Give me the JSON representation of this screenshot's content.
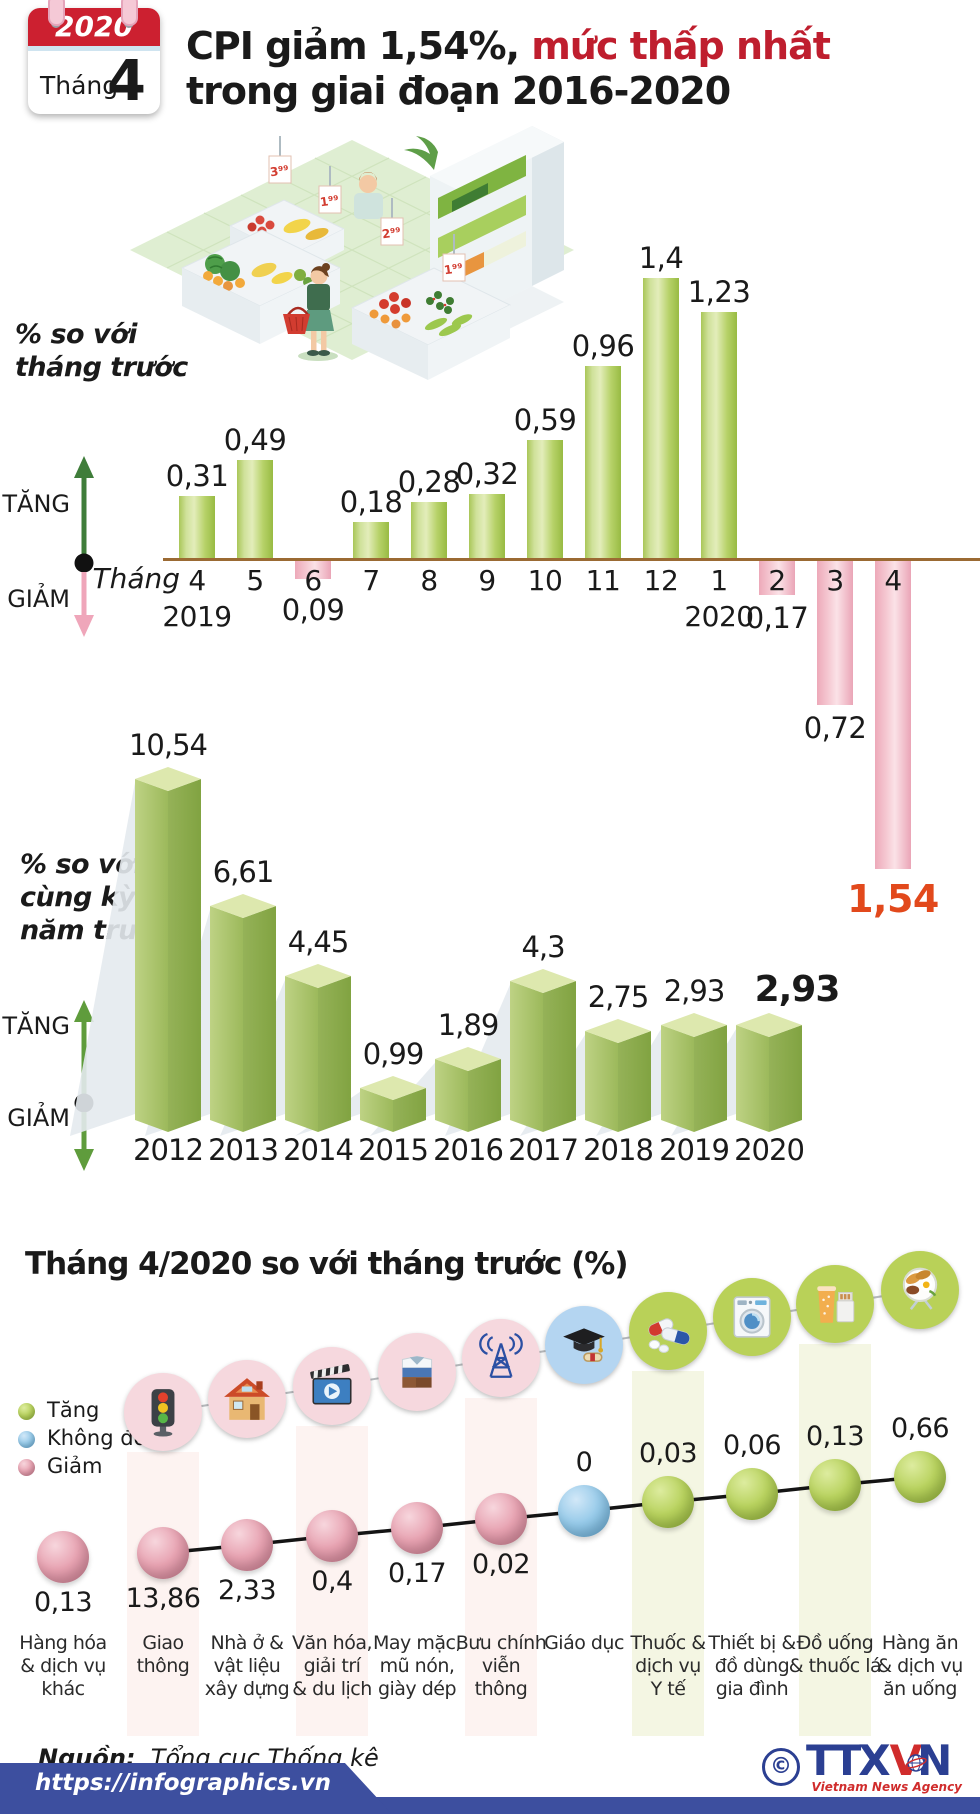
{
  "header": {
    "calendar": {
      "year": "2020",
      "month_label": "Tháng",
      "month_number": "4"
    },
    "title_part1": "CPI giảm 1,54%, ",
    "title_highlight": "mức thấp nhất",
    "title_line2": "trong giai đoạn 2016-2020"
  },
  "illustration": {
    "price_tags": [
      "3⁹⁹",
      "1⁹⁹",
      "2⁹⁹",
      "1⁹⁹"
    ]
  },
  "colors": {
    "up_green": "#3f7d3a",
    "down_pink": "#efa6ba",
    "bar_green": "#b7d269",
    "bar_pink": "#f2bcc8",
    "bar3d_green": "#a3bd62",
    "highlight_orange": "#e2491c",
    "axis_brown": "#9b6a33",
    "footer_blue": "#3d4f9f",
    "logo_red": "#d02c2c",
    "title_red": "#bf1e2e"
  },
  "chart_data": [
    {
      "id": "cpi-month-over-month",
      "type": "bar",
      "title": "% so với tháng trước",
      "title_lines": [
        "% so với",
        "tháng trước"
      ],
      "legend_up": "TĂNG",
      "legend_down": "GIẢM",
      "axis_label": "Tháng",
      "categories": [
        "4",
        "5",
        "6",
        "7",
        "8",
        "9",
        "10",
        "11",
        "12",
        "1",
        "2",
        "3",
        "4"
      ],
      "year_marks": [
        {
          "index": 0,
          "label": "2019"
        },
        {
          "index": 9,
          "label": "2020"
        }
      ],
      "values": [
        0.31,
        0.49,
        -0.09,
        0.18,
        0.28,
        0.32,
        0.59,
        0.96,
        1.4,
        1.23,
        -0.17,
        -0.72,
        -1.54
      ],
      "value_labels": [
        "0,31",
        "0,49",
        "0,09",
        "0,18",
        "0,28",
        "0,32",
        "0,59",
        "0,96",
        "1,4",
        "1,23",
        "0,17",
        "0,72",
        "1,54"
      ],
      "highlight_index": 12,
      "ylim": [
        -1.7,
        1.5
      ],
      "grid": false
    },
    {
      "id": "cpi-year-over-year",
      "type": "bar3d",
      "title": "% so với cùng kỳ năm trước",
      "title_lines": [
        "% so với",
        "cùng kỳ",
        "năm trước"
      ],
      "legend_up": "TĂNG",
      "legend_down": "GIẢM",
      "categories": [
        "2012",
        "2013",
        "2014",
        "2015",
        "2016",
        "2017",
        "2018",
        "2019",
        "2020"
      ],
      "values": [
        10.54,
        6.61,
        4.45,
        0.99,
        1.89,
        4.3,
        2.75,
        2.93,
        2.93
      ],
      "value_labels": [
        "10,54",
        "6,61",
        "4,45",
        "0,99",
        "1,89",
        "4,3",
        "2,75",
        "2,93",
        "2,93"
      ],
      "bold_index": 8,
      "ylim": [
        0,
        11
      ],
      "grid": false
    },
    {
      "id": "cpi-groups-april-2020",
      "type": "dot-line",
      "title": "Tháng 4/2020 so với tháng trước (%)",
      "legend": [
        {
          "label": "Tăng",
          "status": "up",
          "color": "#b8d25e"
        },
        {
          "label": "Không đổi",
          "status": "unchanged",
          "color": "#96cae9"
        },
        {
          "label": "Giảm",
          "status": "down",
          "color": "#e7a2b1"
        }
      ],
      "items": [
        {
          "label": "Hàng hóa & dịch vụ khác",
          "label_lines": [
            "Hàng hóa",
            "& dịch vụ",
            "khác"
          ],
          "value": -0.13,
          "value_label": "0,13",
          "status": "down",
          "icon": null,
          "stripe": null,
          "connected": false
        },
        {
          "label": "Giao thông",
          "label_lines": [
            "Giao",
            "thông"
          ],
          "value": -13.86,
          "value_label": "13,86",
          "status": "down",
          "icon": "traffic-light",
          "stripe": "pink",
          "connected": true
        },
        {
          "label": "Nhà ở & vật liệu xây dựng",
          "label_lines": [
            "Nhà ở &",
            "vật liệu",
            "xây dựng"
          ],
          "value": -2.33,
          "value_label": "2,33",
          "status": "down",
          "icon": "house",
          "stripe": null,
          "connected": true
        },
        {
          "label": "Văn hóa, giải trí & du lịch",
          "label_lines": [
            "Văn hóa,",
            "giải trí",
            "& du lịch"
          ],
          "value": -0.4,
          "value_label": "0,4",
          "status": "down",
          "icon": "entertainment",
          "stripe": "pink",
          "connected": true
        },
        {
          "label": "May mặc, mũ nón, giày dép",
          "label_lines": [
            "May mặc,",
            "mũ nón,",
            "giày dép"
          ],
          "value": -0.17,
          "value_label": "0,17",
          "status": "down",
          "icon": "apparel",
          "stripe": null,
          "connected": true
        },
        {
          "label": "Bưu chính viễn thông",
          "label_lines": [
            "Bưu chính",
            "viễn",
            "thông"
          ],
          "value": -0.02,
          "value_label": "0,02",
          "status": "down",
          "icon": "telecom-tower",
          "stripe": "pink",
          "connected": true
        },
        {
          "label": "Giáo dục",
          "label_lines": [
            "Giáo dục"
          ],
          "value": 0,
          "value_label": "0",
          "status": "unchanged",
          "icon": "education",
          "stripe": null,
          "connected": true
        },
        {
          "label": "Thuốc & dịch vụ Y tế",
          "label_lines": [
            "Thuốc &",
            "dịch vụ",
            "Y tế"
          ],
          "value": 0.03,
          "value_label": "0,03",
          "status": "up",
          "icon": "medicine",
          "stripe": "green",
          "connected": true
        },
        {
          "label": "Thiết bị & đồ dùng gia đình",
          "label_lines": [
            "Thiết bị &",
            "đồ dùng",
            "gia đình"
          ],
          "value": 0.06,
          "value_label": "0,06",
          "status": "up",
          "icon": "washing-machine",
          "stripe": null,
          "connected": true
        },
        {
          "label": "Đồ uống & thuốc lá",
          "label_lines": [
            "Đồ uống",
            "& thuốc lá"
          ],
          "value": 0.13,
          "value_label": "0,13",
          "status": "up",
          "icon": "beverage-tobacco",
          "stripe": "green",
          "connected": true
        },
        {
          "label": "Hàng ăn & dịch vụ ăn uống",
          "label_lines": [
            "Hàng ăn",
            "& dịch vụ",
            "ăn uống"
          ],
          "value": 0.66,
          "value_label": "0,66",
          "status": "up",
          "icon": "food",
          "stripe": null,
          "connected": true
        }
      ]
    }
  ],
  "footer": {
    "source_label": "Nguồn:",
    "source_name": "Tổng cục Thống kê",
    "website": "https://infographics.vn",
    "copyright_symbol": "©",
    "agency_abbr": [
      "TTX",
      "V",
      "N"
    ],
    "agency_name": "Vietnam News Agency"
  }
}
